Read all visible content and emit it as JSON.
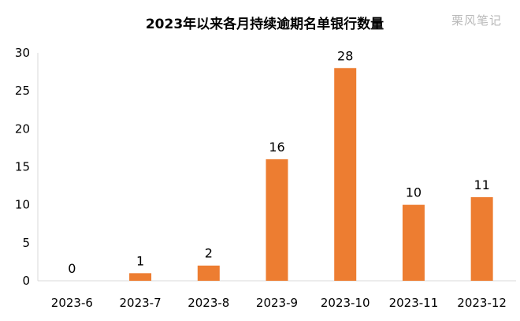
{
  "chart_data": {
    "type": "bar",
    "title": "2023年以来各月持续逾期名单银行数量",
    "categories": [
      "2023-6",
      "2023-7",
      "2023-8",
      "2023-9",
      "2023-10",
      "2023-11",
      "2023-12"
    ],
    "values": [
      0,
      1,
      2,
      16,
      28,
      10,
      11
    ],
    "data_labels": [
      "0",
      "1",
      "2",
      "16",
      "28",
      "10",
      "11"
    ],
    "y_ticks": [
      "0",
      "5",
      "10",
      "15",
      "20",
      "25",
      "30"
    ],
    "ylim": [
      0,
      30
    ],
    "xlabel": "",
    "ylabel": "",
    "grid": false,
    "legend": "none",
    "bar_color": "#ED7D31",
    "axis_color": "#d9d9d9"
  },
  "watermark": "栗风笔记"
}
